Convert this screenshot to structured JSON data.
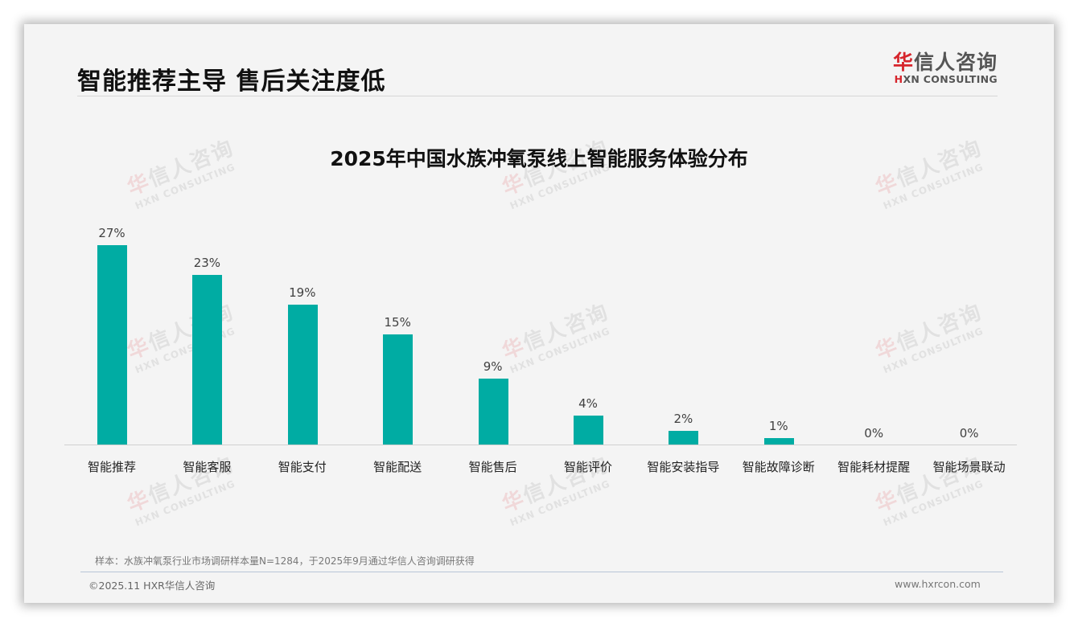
{
  "slide": {
    "title": "智能推荐主导 售后关注度低"
  },
  "logo": {
    "cn_first": "华",
    "cn_rest": "信人咨询",
    "en_first": "H",
    "en_rest": "XN CONSULTING"
  },
  "watermark": {
    "cn_first": "华",
    "cn_rest": "信人咨询",
    "en": "HXN CONSULTING"
  },
  "colors": {
    "bar": "#00aca3",
    "brand_red": "#d6252c"
  },
  "chart_data": {
    "type": "bar",
    "title": "2025年中国水族冲氧泵线上智能服务体验分布",
    "xlabel": "",
    "ylabel": "",
    "ylim": [
      0,
      30
    ],
    "grid": false,
    "legend": null,
    "categories": [
      "智能推荐",
      "智能客服",
      "智能支付",
      "智能配送",
      "智能售后",
      "智能评价",
      "智能安装指导",
      "智能故障诊断",
      "智能耗材提醒",
      "智能场景联动"
    ],
    "values": [
      27,
      23,
      19,
      15,
      9,
      4,
      2,
      1,
      0,
      0
    ],
    "labels": [
      "27%",
      "23%",
      "19%",
      "15%",
      "9%",
      "4%",
      "2%",
      "1%",
      "0%",
      "0%"
    ],
    "unit": "%"
  },
  "footer": {
    "note": "样本：水族冲氧泵行业市场调研样本量N=1284，于2025年9月通过华信人咨询调研获得",
    "copyright": "©2025.11 HXR华信人咨询",
    "website": "www.hxrcon.com"
  }
}
